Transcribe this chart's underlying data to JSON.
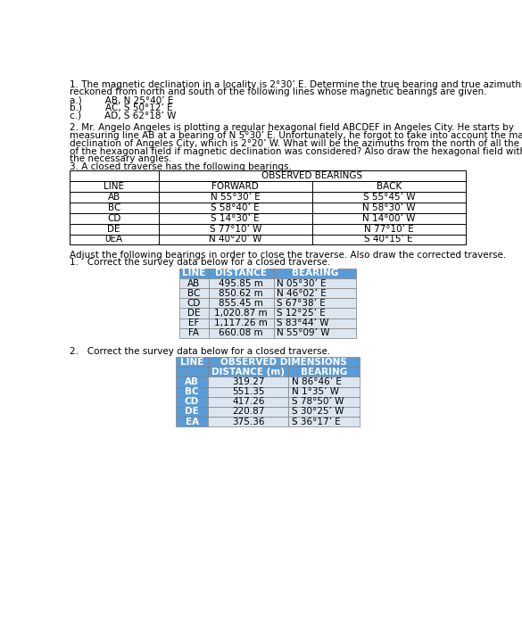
{
  "bg_color": "#ffffff",
  "text_color": "#000000",
  "font_size": 7.5,
  "para1_line1": "1. The magnetic declination in a locality is 2°30’ E. Determine the true bearing and true azimuths",
  "para1_line2": "reckoned from north and south of the following lines whose magnetic bearings are given.",
  "para1_items": [
    "a.)        AB, N 25°40’ E",
    "b.)        AC, S 50°12’ E",
    "c.)        AD, S 62°18’ W"
  ],
  "para2_lines": [
    "2. Mr. Angelo Angeles is plotting a regular hexagonal field ABCDEF in Angeles City. He starts by",
    "measuring line AB at a bearing of N 5°30’ E. Unfortunately, he forgot to take into account the magnetic",
    "declination of Angeles City, which is 2°20’ W. What will be the azimuths from the north of all the lines",
    "of the hexagonal field if magnetic declination was considered? Also draw the hexagonal field with all",
    "the necessary angles."
  ],
  "para3_header": "3. A closed traverse has the following bearings.",
  "table3_data": [
    [
      "AB",
      "N 55°30’ E",
      "S 55°45’ W"
    ],
    [
      "BC",
      "S 58°40’ E",
      "N 58°30’ W"
    ],
    [
      "CD",
      "S 14°30’ E",
      "N 14°00’ W"
    ],
    [
      "DE",
      "S 77°10’ W",
      "N 77°10’ E"
    ],
    [
      "0EA",
      "N 40°20’ W",
      "S 40°15’ E"
    ]
  ],
  "para4": "Adjust the following bearings in order to close the traverse. Also draw the corrected traverse.",
  "para4b": "1.   Correct the survey data below for a closed traverse.",
  "table4_data": [
    [
      "AB",
      "495.85 m",
      "N 05°30’ E"
    ],
    [
      "BC",
      "850.62 m",
      "N 46°02’ E"
    ],
    [
      "CD",
      "855.45 m",
      "S 67°38’ E"
    ],
    [
      "DE",
      "1,020.87 m",
      "S 12°25’ E"
    ],
    [
      "EF",
      "1,117.26 m",
      "S 83°44’ W"
    ],
    [
      "FA",
      "660.08 m",
      "N 55°09’ W"
    ]
  ],
  "para5": "2.   Correct the survey data below for a closed traverse.",
  "table5_data": [
    [
      "AB",
      "319.27",
      "N 86°46’ E"
    ],
    [
      "BC",
      "551.35",
      "N 1°35’ W"
    ],
    [
      "CD",
      "417.26",
      "S 78°50’ W"
    ],
    [
      "DE",
      "220.87",
      "S 30°25’ W"
    ],
    [
      "EA",
      "375.36",
      "S 36°17’ E"
    ]
  ],
  "tbl3_header_bg": "#ffffff",
  "tbl3_header_text": "#000000",
  "tbl3_row_bg": "#ffffff",
  "tbl3_border": "#000000",
  "tbl4_header_bg": "#5b9bd5",
  "tbl4_header_text": "#ffffff",
  "tbl4_row_bg_light": "#dce6f1",
  "tbl4_row_bg_mid": "#c5d9f1",
  "tbl4_border": "#7f7f7f",
  "tbl5_header_bg": "#5b9bd5",
  "tbl5_header_text": "#ffffff",
  "tbl5_line_col_bg": "#5b9bd5",
  "tbl5_line_col_text": "#ffffff",
  "tbl5_row_bg": "#dce6f1",
  "tbl5_border": "#7f7f7f"
}
